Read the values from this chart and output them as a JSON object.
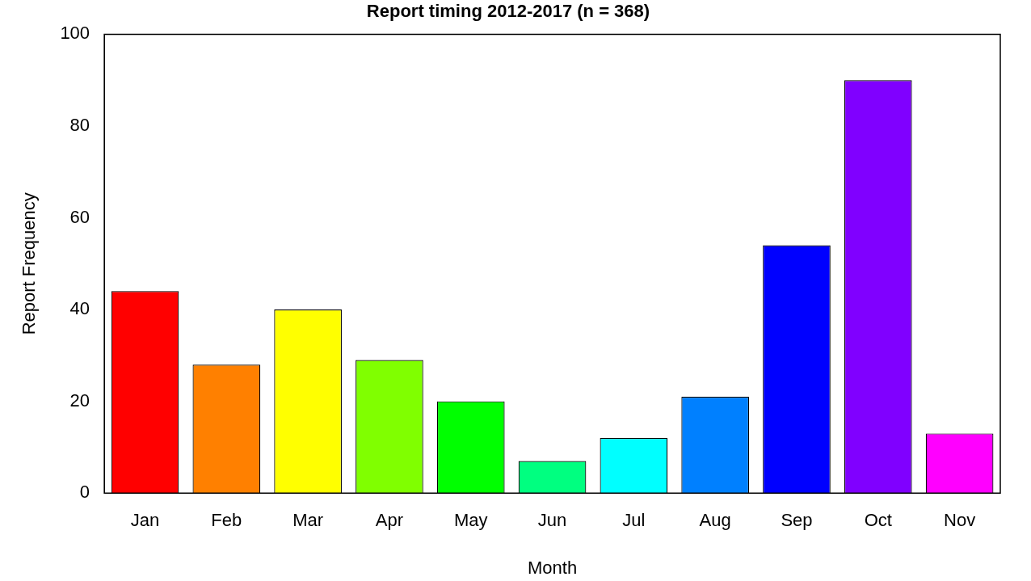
{
  "chart_data": {
    "type": "bar",
    "title": "Report timing 2012-2017 (n = 368)",
    "xlabel": "Month",
    "ylabel": "Report Frequency",
    "categories": [
      "Jan",
      "Feb",
      "Mar",
      "Apr",
      "May",
      "Jun",
      "Jul",
      "Aug",
      "Sep",
      "Oct",
      "Nov"
    ],
    "values": [
      44,
      28,
      40,
      29,
      20,
      7,
      12,
      21,
      54,
      90,
      13
    ],
    "colors": [
      "#ff0000",
      "#ff8000",
      "#ffff00",
      "#80ff00",
      "#00ff00",
      "#00ff80",
      "#00ffff",
      "#0080ff",
      "#0000ff",
      "#8000ff",
      "#ff00ff"
    ],
    "ylim": [
      0,
      100
    ],
    "yticks": [
      0,
      20,
      40,
      60,
      80,
      100
    ],
    "grid": false,
    "legend": false
  }
}
